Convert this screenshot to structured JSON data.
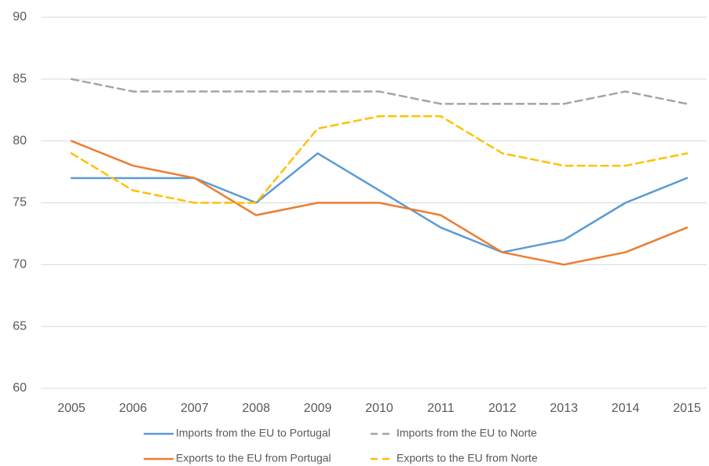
{
  "chart_data": {
    "type": "line",
    "x": [
      2005,
      2006,
      2007,
      2008,
      2009,
      2010,
      2011,
      2012,
      2013,
      2014,
      2015
    ],
    "xlim": [
      2005,
      2015
    ],
    "xticks": [
      2005,
      2006,
      2007,
      2008,
      2009,
      2010,
      2011,
      2012,
      2013,
      2014,
      2015
    ],
    "ylim": [
      60,
      90
    ],
    "yticks": [
      60,
      65,
      70,
      75,
      80,
      85,
      90
    ],
    "grid": true,
    "legend": "bottom",
    "series": [
      {
        "name": "Imports from the EU to Portugal",
        "color": "#5b9bd5",
        "dashed": false,
        "values": [
          77,
          77,
          77,
          75,
          79,
          76,
          73,
          71,
          72,
          75,
          77
        ]
      },
      {
        "name": "Imports from the EU to Norte",
        "color": "#a5a5a5",
        "dashed": true,
        "values": [
          85,
          84,
          84,
          84,
          84,
          84,
          83,
          83,
          83,
          84,
          83
        ]
      },
      {
        "name": "Exports to the EU from Portugal",
        "color": "#ed7d31",
        "dashed": false,
        "values": [
          80,
          78,
          77,
          74,
          75,
          75,
          74,
          71,
          70,
          71,
          73
        ]
      },
      {
        "name": "Exports to the EU from Norte",
        "color": "#ffc000",
        "dashed": true,
        "values": [
          79,
          76,
          75,
          75,
          81,
          82,
          82,
          79,
          78,
          78,
          79
        ]
      }
    ]
  }
}
